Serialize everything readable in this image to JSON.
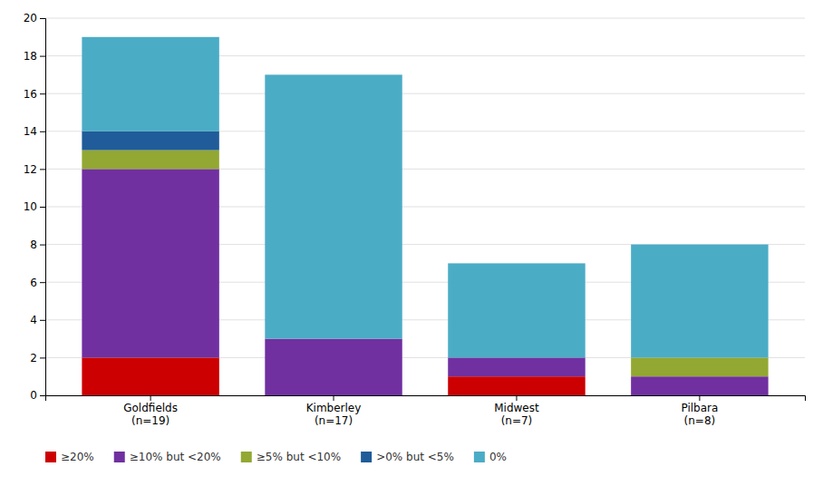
{
  "chart_data": {
    "type": "bar",
    "stacked": true,
    "categories": [
      "Goldfields\n(n=19)",
      "Kimberley\n(n=17)",
      "Midwest\n(n=7)",
      "Pilbara\n(n=8)"
    ],
    "series": [
      {
        "name": "≥20%",
        "color": "#CC0000",
        "values": [
          2,
          0,
          1,
          0
        ]
      },
      {
        "name": "≥10% but <20%",
        "color": "#7030A0",
        "values": [
          10,
          3,
          1,
          1
        ]
      },
      {
        "name": "≥5% but <10%",
        "color": "#92A832",
        "values": [
          1,
          0,
          0,
          1
        ]
      },
      {
        "name": ">0% but <5%",
        "color": "#1F5C99",
        "values": [
          1,
          0,
          0,
          0
        ]
      },
      {
        "name": "0%",
        "color": "#4BACC6",
        "values": [
          5,
          14,
          5,
          6
        ]
      }
    ],
    "ylim": [
      0,
      20
    ],
    "yticks": [
      0,
      2,
      4,
      6,
      8,
      10,
      12,
      14,
      16,
      18,
      20
    ],
    "grid": true,
    "legend": "bottom"
  }
}
